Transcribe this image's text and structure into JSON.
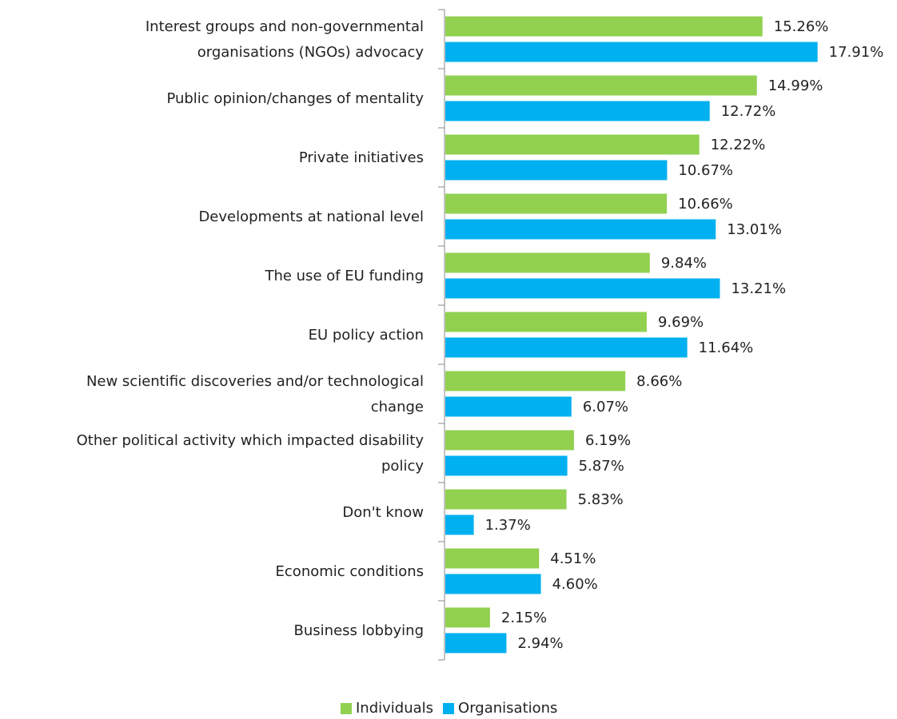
{
  "chart_data": {
    "type": "bar",
    "orientation": "horizontal",
    "categories": [
      "Interest groups and non-governmental organisations (NGOs) advocacy",
      "Public opinion/changes of mentality",
      "Private initiatives",
      "Developments at national level",
      "The use of EU funding",
      "EU policy action",
      "New scientific discoveries and/or technological change",
      "Other political activity which impacted disability policy",
      "Don't know",
      "Economic conditions",
      "Business lobbying"
    ],
    "category_lines": [
      [
        "Interest groups and non-governmental",
        "organisations (NGOs) advocacy"
      ],
      [
        "Public opinion/changes of mentality"
      ],
      [
        "Private initiatives"
      ],
      [
        "Developments at national level"
      ],
      [
        "The use of EU funding"
      ],
      [
        "EU policy action"
      ],
      [
        "New scientific discoveries and/or technological",
        "change"
      ],
      [
        "Other political activity which impacted disability",
        "policy"
      ],
      [
        "Don't know"
      ],
      [
        "Economic conditions"
      ],
      [
        "Business lobbying"
      ]
    ],
    "series": [
      {
        "name": "Individuals",
        "color": "#92D050",
        "values": [
          15.26,
          14.99,
          12.22,
          10.66,
          9.84,
          9.69,
          8.66,
          6.19,
          5.83,
          4.51,
          2.15
        ],
        "labels": [
          "15.26%",
          "14.99%",
          "12.22%",
          "10.66%",
          "9.84%",
          "9.69%",
          "8.66%",
          "6.19%",
          "5.83%",
          "4.51%",
          "2.15%"
        ]
      },
      {
        "name": "Organisations",
        "color": "#00B0F0",
        "values": [
          17.91,
          12.72,
          10.67,
          13.01,
          13.21,
          11.64,
          6.07,
          5.87,
          1.37,
          4.6,
          2.94
        ],
        "labels": [
          "17.91%",
          "12.72%",
          "10.67%",
          "13.01%",
          "13.21%",
          "11.64%",
          "6.07%",
          "5.87%",
          "1.37%",
          "4.60%",
          "2.94%"
        ]
      }
    ],
    "xlim": [
      0,
      20
    ],
    "legend_position": "bottom",
    "title": "",
    "xlabel": "",
    "ylabel": ""
  }
}
